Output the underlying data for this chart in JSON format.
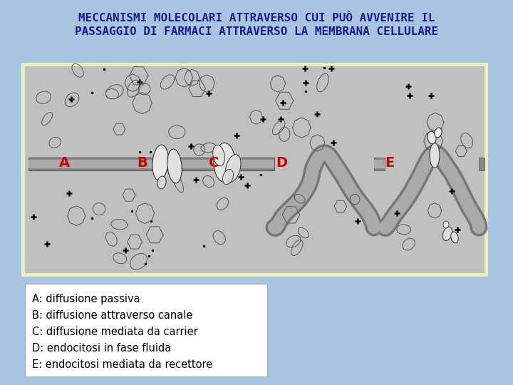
{
  "title_line1": "MECCANISMI MOLECOLARI ATTRAVERSO CUI PUÒ AVVENIRE IL",
  "title_line2": "PASSAGGIO DI FARMACI ATTRAVERSO LA MEMBRANA CELLULARE",
  "title_color": "#1a1a8c",
  "title_fontsize": 11.5,
  "outer_bg": "#a8c4e0",
  "legend_lines": [
    "A: diffusione passiva",
    "B: diffusione attraverso canale",
    "C: diffusione mediata da carrier",
    "D: endocitosi in fase fluida",
    "E: endocitosi mediata da recettore"
  ],
  "legend_fontsize": 10.5,
  "legend_bg": "#ffffff",
  "labels": [
    "A",
    "B",
    "C",
    "D",
    "E"
  ],
  "label_color": "#cc0000",
  "label_fontsize": 14
}
